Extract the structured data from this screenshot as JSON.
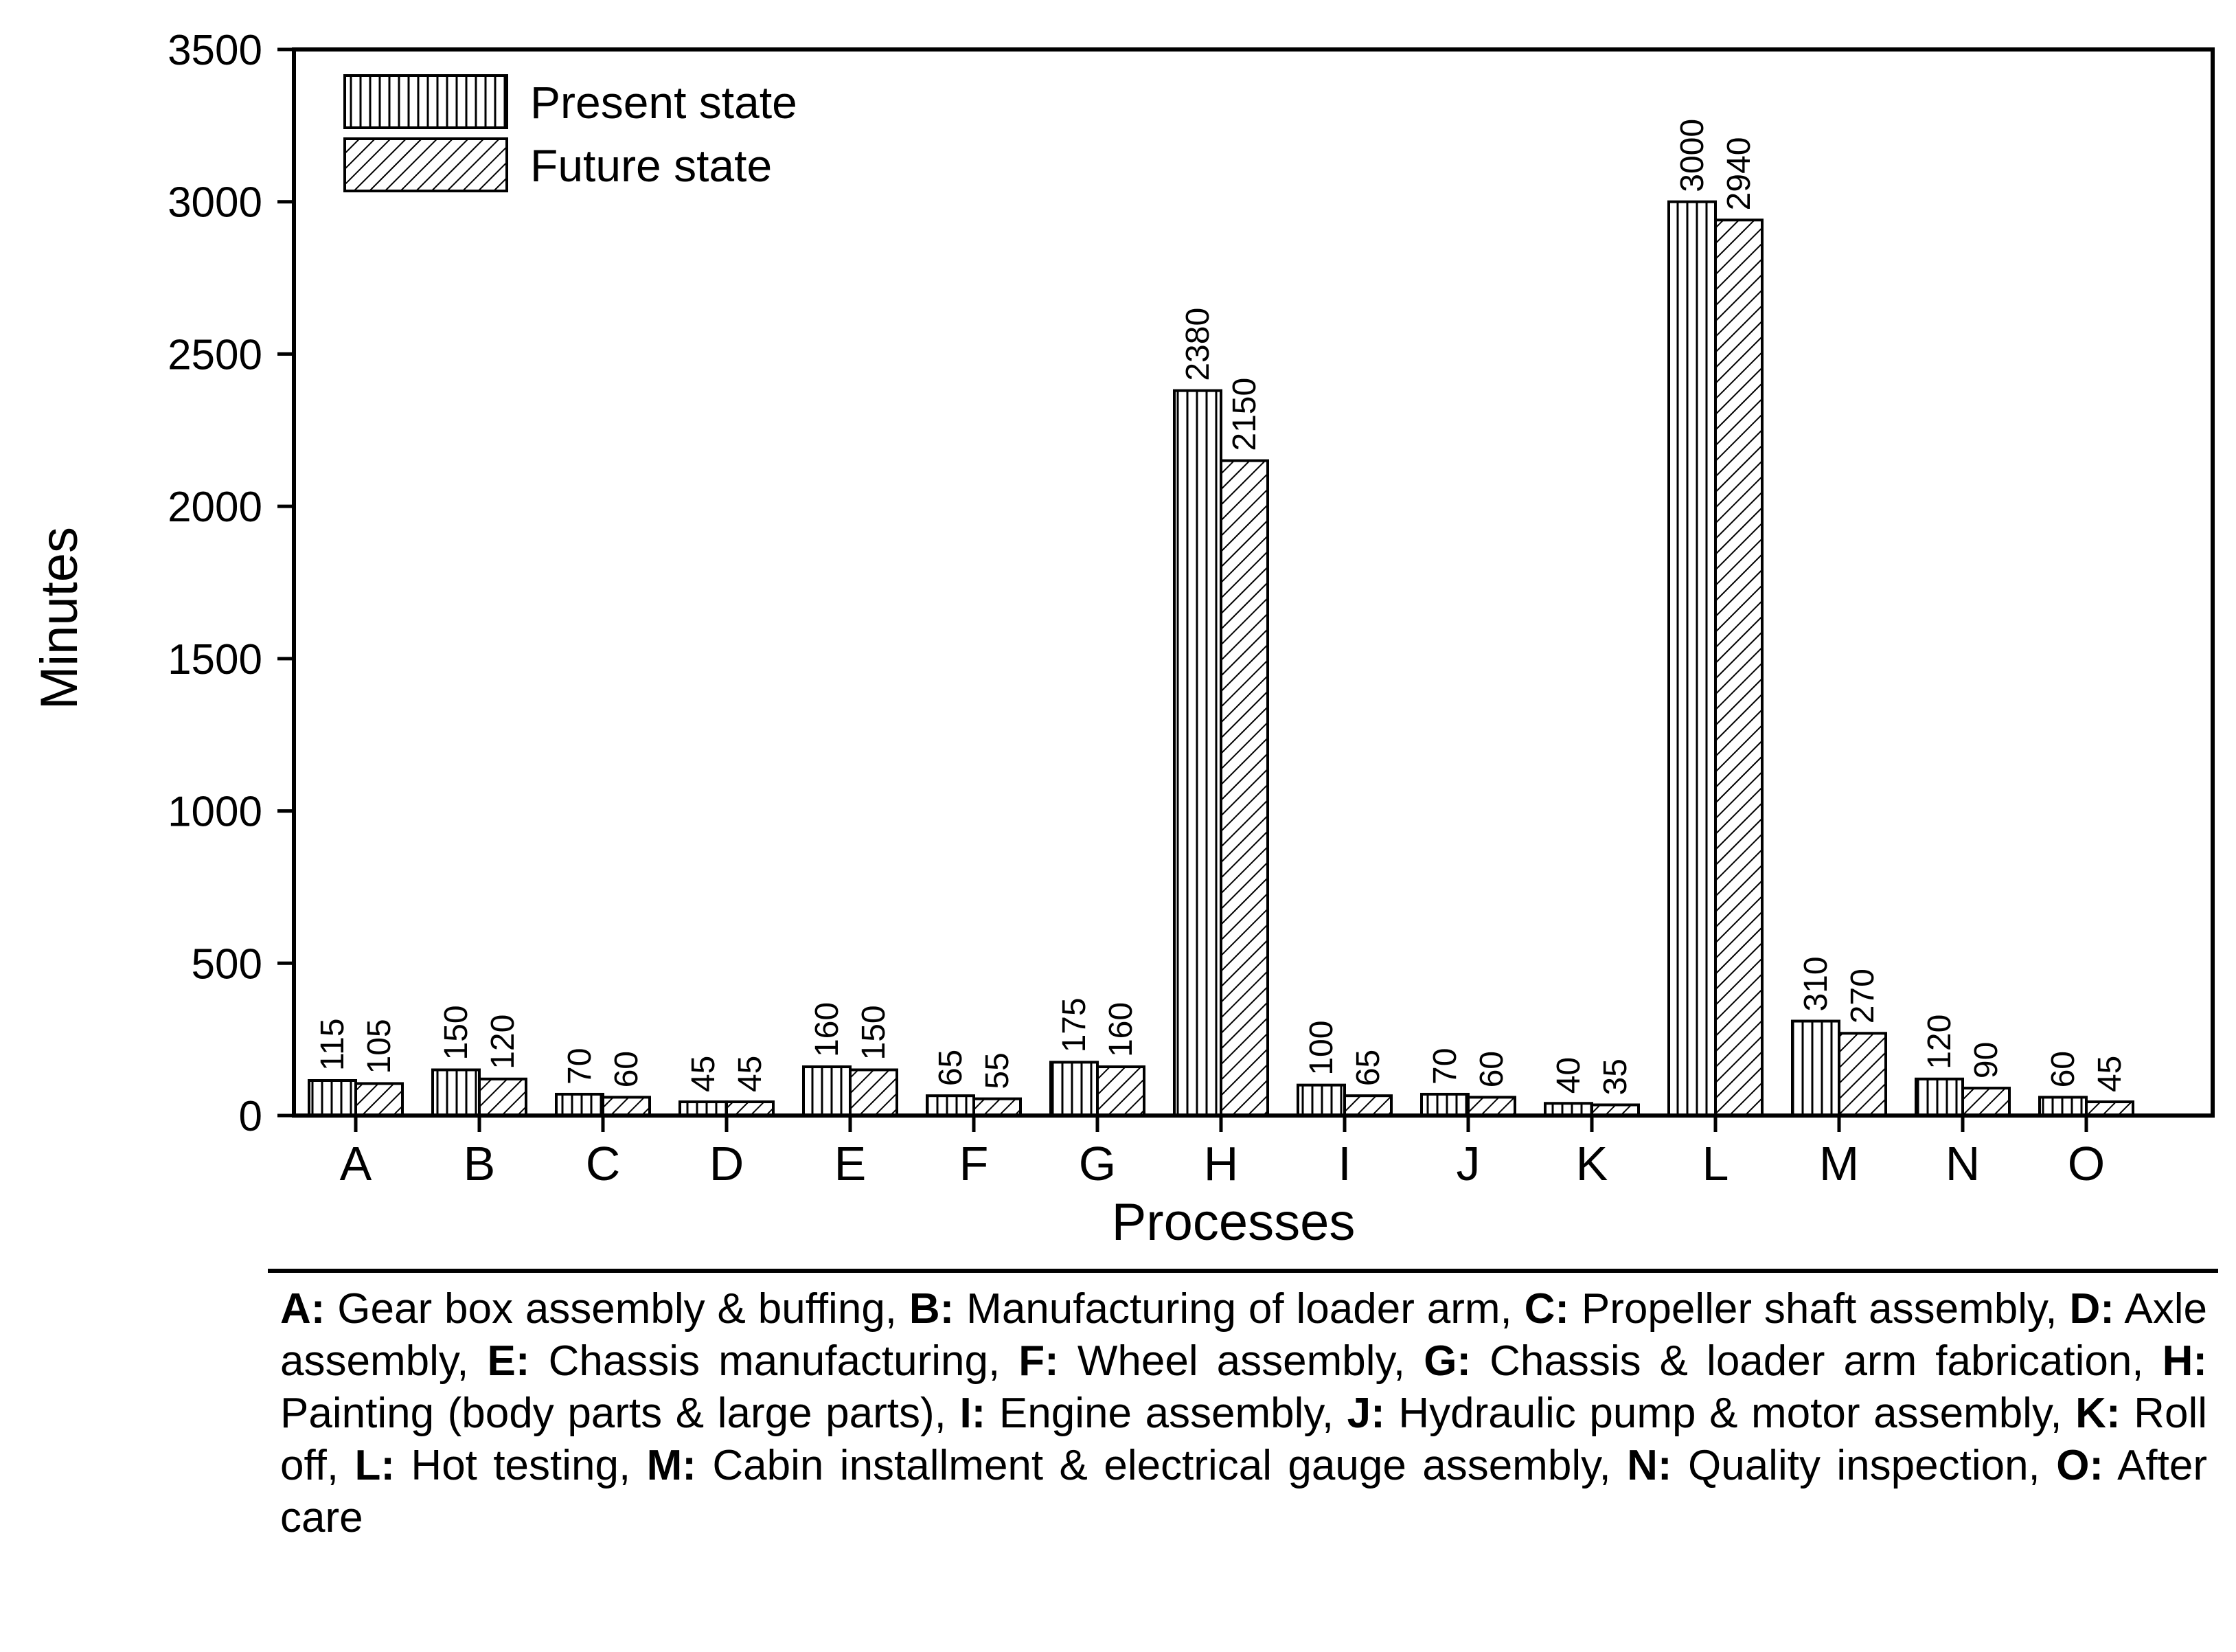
{
  "chart_data": {
    "type": "bar",
    "xlabel": "Processes",
    "ylabel": "Minutes",
    "ylim": [
      0,
      3500
    ],
    "yticks": [
      0,
      500,
      1000,
      1500,
      2000,
      2500,
      3000,
      3500
    ],
    "grid": false,
    "legend_position": "top-left",
    "categories": [
      "A",
      "B",
      "C",
      "D",
      "E",
      "F",
      "G",
      "H",
      "I",
      "J",
      "K",
      "L",
      "M",
      "N",
      "O"
    ],
    "series": [
      {
        "name": "Present state",
        "pattern": "vertical-lines",
        "values": [
          115,
          150,
          70,
          45,
          160,
          65,
          175,
          2380,
          100,
          70,
          40,
          3000,
          310,
          120,
          60
        ]
      },
      {
        "name": "Future state",
        "pattern": "diagonal-hatch",
        "values": [
          105,
          120,
          60,
          45,
          150,
          55,
          160,
          2150,
          65,
          60,
          35,
          2940,
          270,
          90,
          45
        ]
      }
    ]
  },
  "caption": [
    {
      "key": "A:",
      "text": " Gear box assembly & buffing, "
    },
    {
      "key": "B:",
      "text": " Manufacturing of loader arm, "
    },
    {
      "key": "C:",
      "text": " Propeller shaft assembly, "
    },
    {
      "key": "D:",
      "text": " Axle assembly, "
    },
    {
      "key": "E:",
      "text": " Chassis manufacturing, "
    },
    {
      "key": "F:",
      "text": " Wheel assembly, "
    },
    {
      "key": "G:",
      "text": " Chassis & loader arm fabrication, "
    },
    {
      "key": "H:",
      "text": " Painting (body parts & large parts), "
    },
    {
      "key": "I:",
      "text": " Engine assembly, "
    },
    {
      "key": "J:",
      "text": " Hydraulic pump & motor assembly, "
    },
    {
      "key": "K:",
      "text": " Roll off, "
    },
    {
      "key": "L:",
      "text": " Hot testing, "
    },
    {
      "key": "M:",
      "text": " Cabin installment & electrical gauge assembly, "
    },
    {
      "key": "N:",
      "text": " Quality inspection, "
    },
    {
      "key": "O:",
      "text": " After care"
    }
  ]
}
